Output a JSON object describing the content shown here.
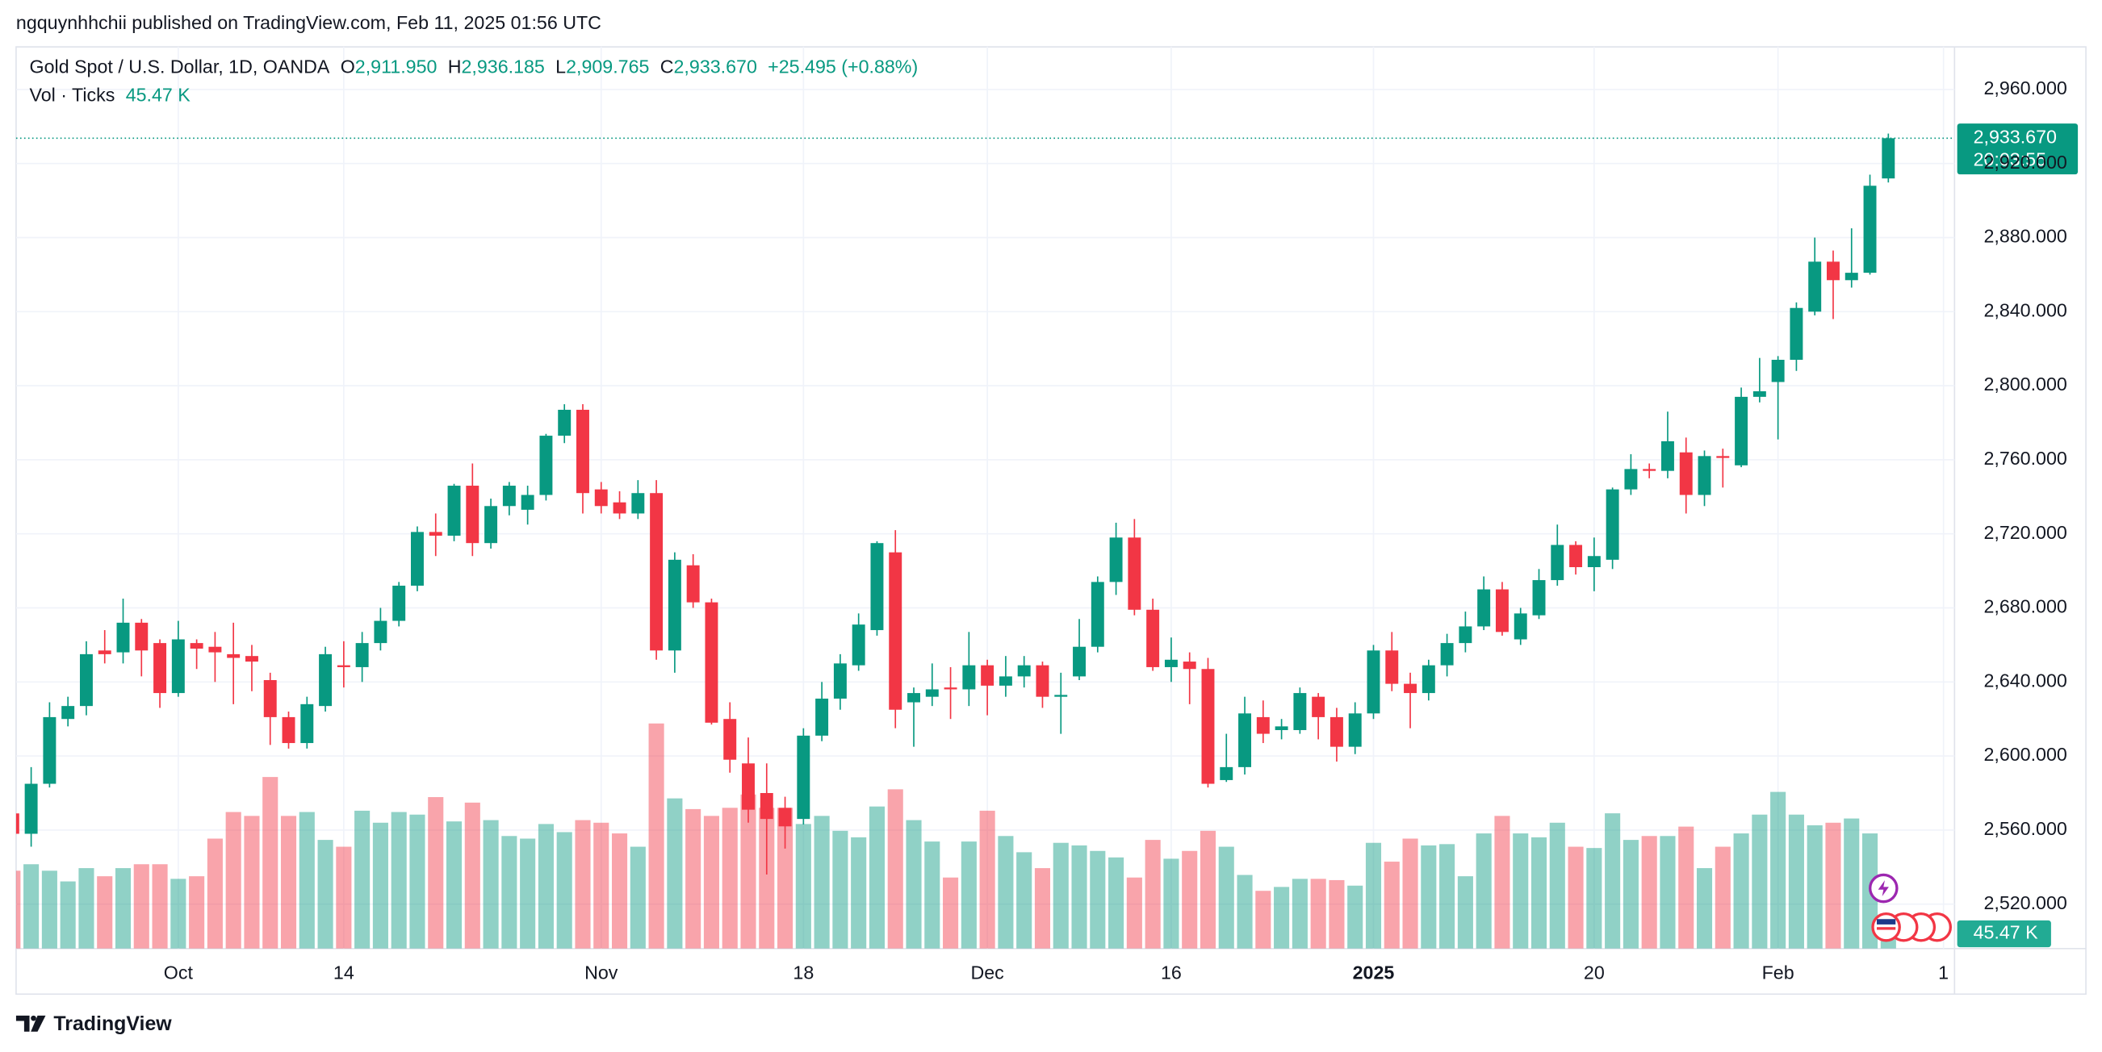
{
  "header": "ngquynhhchii published on TradingView.com, Feb 11, 2025 01:56 UTC",
  "brand": "TradingView",
  "chart_data": {
    "type": "candlestick",
    "title": "Gold Spot / U.S. Dollar, 1D, OANDA",
    "legend": [
      {
        "label": "O",
        "value": "2,911.950"
      },
      {
        "label": "H",
        "value": "2,936.185"
      },
      {
        "label": "L",
        "value": "2,909.765"
      },
      {
        "label": "C",
        "value": "2,933.670"
      }
    ],
    "change": "+25.495 (+0.88%)",
    "price_tag": "2,933.670",
    "countdown": "20:03:55",
    "up_color": "#089981",
    "down_color": "#f23645",
    "grid": true,
    "open": [
      2569,
      2558,
      2585,
      2620,
      2627,
      2657,
      2656,
      2672,
      2661,
      2634,
      2661,
      2659,
      2655,
      2654,
      2641,
      2621,
      2607,
      2627,
      2649,
      2648,
      2661,
      2673,
      2692,
      2721,
      2719,
      2746,
      2715,
      2735,
      2733,
      2741,
      2773,
      2787,
      2744,
      2737,
      2731,
      2742,
      2657,
      2703,
      2683,
      2620,
      2596,
      2580,
      2572,
      2566,
      2611,
      2631,
      2649,
      2668,
      2710,
      2629,
      2632,
      2637,
      2636,
      2649,
      2638,
      2643,
      2649,
      2632,
      2643,
      2659,
      2694,
      2718,
      2679,
      2648,
      2651,
      2647,
      2587,
      2594,
      2621,
      2614,
      2614,
      2632,
      2621,
      2605,
      2623,
      2657,
      2639,
      2634,
      2649,
      2661,
      2670,
      2690,
      2663,
      2676,
      2695,
      2714,
      2702,
      2706,
      2744,
      2755,
      2754,
      2764,
      2741,
      2762,
      2757,
      2794,
      2802,
      2814,
      2840,
      2867,
      2857,
      2861,
      2911.95
    ],
    "high": [
      2572,
      2594,
      2629,
      2632,
      2662,
      2668,
      2685,
      2674,
      2663,
      2673,
      2663,
      2667,
      2672,
      2660,
      2645,
      2624,
      2632,
      2659,
      2662,
      2667,
      2680,
      2694,
      2724,
      2731,
      2747,
      2758,
      2739,
      2748,
      2746,
      2774,
      2790,
      2790,
      2748,
      2743,
      2749,
      2749,
      2710,
      2709,
      2685,
      2629,
      2610,
      2596,
      2578,
      2615,
      2640,
      2655,
      2677,
      2716,
      2722,
      2637,
      2650,
      2648,
      2667,
      2652,
      2654,
      2654,
      2651,
      2645,
      2674,
      2697,
      2726,
      2728,
      2685,
      2664,
      2656,
      2653,
      2612,
      2632,
      2630,
      2620,
      2637,
      2634,
      2626,
      2629,
      2660,
      2667,
      2645,
      2652,
      2666,
      2678,
      2697,
      2694,
      2680,
      2701,
      2725,
      2716,
      2718,
      2745,
      2763,
      2758,
      2786,
      2772,
      2765,
      2766,
      2799,
      2815,
      2816,
      2845,
      2880,
      2873,
      2885,
      2914,
      2936.185
    ],
    "low": [
      2555,
      2551,
      2583,
      2616,
      2622,
      2650,
      2650,
      2643,
      2626,
      2632,
      2647,
      2640,
      2628,
      2635,
      2606,
      2604,
      2604,
      2624,
      2637,
      2640,
      2657,
      2670,
      2689,
      2708,
      2716,
      2708,
      2712,
      2730,
      2725,
      2738,
      2769,
      2731,
      2731,
      2728,
      2728,
      2652,
      2645,
      2680,
      2617,
      2591,
      2564,
      2536,
      2550,
      2563,
      2608,
      2625,
      2646,
      2665,
      2615,
      2605,
      2627,
      2620,
      2627,
      2622,
      2632,
      2637,
      2626,
      2612,
      2641,
      2656,
      2687,
      2676,
      2646,
      2640,
      2628,
      2583,
      2586,
      2590,
      2607,
      2609,
      2612,
      2609,
      2597,
      2601,
      2620,
      2635,
      2615,
      2630,
      2643,
      2656,
      2668,
      2665,
      2660,
      2674,
      2692,
      2698,
      2689,
      2701,
      2741,
      2750,
      2750,
      2731,
      2735,
      2745,
      2756,
      2791,
      2771,
      2808,
      2838,
      2836,
      2853,
      2860,
      2909.765
    ],
    "close": [
      2558,
      2585,
      2621,
      2627,
      2655,
      2655,
      2672,
      2657,
      2634,
      2663,
      2658,
      2656,
      2653,
      2651,
      2621,
      2607,
      2628,
      2655,
      2648,
      2661,
      2673,
      2692,
      2721,
      2719,
      2746,
      2715,
      2735,
      2746,
      2741,
      2773,
      2787,
      2742,
      2735,
      2731,
      2742,
      2657,
      2706,
      2683,
      2618,
      2598,
      2571,
      2566,
      2562,
      2611,
      2631,
      2650,
      2671,
      2715,
      2625,
      2634,
      2636,
      2636,
      2649,
      2638,
      2643,
      2649,
      2632,
      2633,
      2659,
      2694,
      2718,
      2679,
      2648,
      2652,
      2647,
      2585,
      2594,
      2623,
      2612,
      2616,
      2634,
      2621,
      2605,
      2623,
      2657,
      2639,
      2634,
      2649,
      2661,
      2670,
      2690,
      2667,
      2677,
      2695,
      2714,
      2702,
      2708,
      2744,
      2755,
      2754,
      2770,
      2741,
      2762,
      2761,
      2794,
      2797,
      2814,
      2842,
      2867,
      2857,
      2861,
      2908,
      2933.67
    ],
    "volume": {
      "name": "Vol · Ticks",
      "label": "45.47 K",
      "values": [
        240,
        260,
        240,
        207,
        248,
        223,
        248,
        260,
        260,
        215,
        223,
        339,
        421,
        409,
        529,
        409,
        421,
        335,
        314,
        425,
        388,
        421,
        413,
        467,
        392,
        450,
        396,
        347,
        339,
        384,
        359,
        396,
        388,
        355,
        314,
        694,
        463,
        430,
        409,
        434,
        475,
        434,
        434,
        384,
        409,
        363,
        343,
        438,
        491,
        396,
        330,
        219,
        330,
        425,
        347,
        297,
        248,
        326,
        318,
        301,
        281,
        219,
        335,
        277,
        301,
        363,
        314,
        227,
        178,
        190,
        215,
        215,
        211,
        194,
        326,
        268,
        339,
        318,
        322,
        223,
        355,
        409,
        355,
        343,
        388,
        314,
        310,
        417,
        335,
        347,
        347,
        376,
        248,
        314,
        355,
        413,
        483,
        413,
        380,
        388,
        401,
        355,
        45.47
      ]
    },
    "xlim": [
      0.18,
      105.6
    ],
    "xticks": [
      {
        "value": 9,
        "label": "Oct"
      },
      {
        "value": 18,
        "label": "14"
      },
      {
        "value": 32,
        "label": "Nov"
      },
      {
        "value": 43,
        "label": "18"
      },
      {
        "value": 53,
        "label": "Dec"
      },
      {
        "value": 63,
        "label": "16"
      },
      {
        "value": 74,
        "label": "2025"
      },
      {
        "value": 86,
        "label": "20"
      },
      {
        "value": 96,
        "label": "Feb"
      },
      {
        "value": 105,
        "label": "1"
      }
    ],
    "ylim": [
      2496,
      2983
    ],
    "yticks": [
      {
        "value": 2520,
        "label": "2,520.000"
      },
      {
        "value": 2560,
        "label": "2,560.000"
      },
      {
        "value": 2600,
        "label": "2,600.000"
      },
      {
        "value": 2640,
        "label": "2,640.000"
      },
      {
        "value": 2680,
        "label": "2,680.000"
      },
      {
        "value": 2720,
        "label": "2,720.000"
      },
      {
        "value": 2760,
        "label": "2,760.000"
      },
      {
        "value": 2800,
        "label": "2,800.000"
      },
      {
        "value": 2840,
        "label": "2,840.000"
      },
      {
        "value": 2880,
        "label": "2,880.000"
      },
      {
        "value": 2920,
        "label": "2,920.000"
      },
      {
        "value": 2960,
        "label": "2,960.000"
      }
    ],
    "y2lim": [
      0,
      2780
    ]
  }
}
